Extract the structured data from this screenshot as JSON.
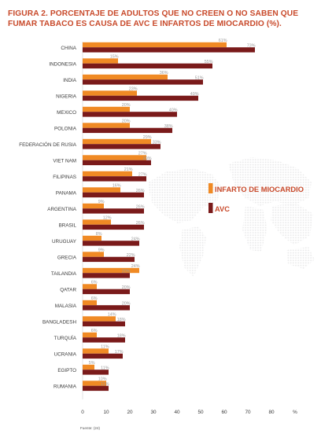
{
  "title": "FIGURA 2. PORCENTAJE DE ADULTOS QUE NO CREEN O NO SABEN QUE FUMAR TABACO ES CAUSA DE AVC E INFARTOS DE MIOCARDIO (%).",
  "source": "Fuente: (24)",
  "chart_data": {
    "type": "bar",
    "orientation": "horizontal",
    "title": "FIGURA 2. PORCENTAJE DE ADULTOS QUE NO CREEN O NO SABEN QUE FUMAR TABACO ES CAUSA DE AVC E INFARTOS DE MIOCARDIO (%).",
    "categories": [
      "CHINA",
      "INDONESIA",
      "INDIA",
      "NIGERIA",
      "MEXICO",
      "POLONIA",
      "FEDERACIÓN DE RUSIA",
      "VIET NAM",
      "FILIPINAS",
      "PANAMA",
      "ARGENTINA",
      "BRASIL",
      "URUGUAY",
      "GRECIA",
      "TAILANDIA",
      "QATAR",
      "MALASIA",
      "BANGLADESH",
      "TURQUÍA",
      "UCRANIA",
      "EGIPTO",
      "RUMANIA"
    ],
    "series": [
      {
        "name": "INFARTO DE MIOCARDIO",
        "color": "#f08a24",
        "values": [
          61,
          15,
          36,
          23,
          20,
          20,
          29,
          27,
          21,
          16,
          9,
          12,
          8,
          9,
          24,
          6,
          6,
          14,
          6,
          11,
          5,
          10
        ]
      },
      {
        "name": "AVC",
        "color": "#7a1a1a",
        "values": [
          73,
          55,
          51,
          49,
          40,
          38,
          33,
          29,
          27,
          26,
          26,
          26,
          24,
          22,
          20,
          20,
          20,
          18,
          18,
          17,
          11,
          11
        ]
      }
    ],
    "data_labels": [
      [
        "61%",
        "73%"
      ],
      [
        "15%",
        "55%"
      ],
      [
        "36%",
        "51%"
      ],
      [
        "23%",
        "49%"
      ],
      [
        "20%",
        "40%"
      ],
      [
        "20%",
        "38%"
      ],
      [
        "29%",
        "33%"
      ],
      [
        "27%",
        "29%"
      ],
      [
        "21%",
        "27%"
      ],
      [
        "16%",
        "26%"
      ],
      [
        "9%",
        "26%"
      ],
      [
        "12%",
        "26%"
      ],
      [
        "8%",
        "24%"
      ],
      [
        "9%",
        "22%"
      ],
      [
        "24%",
        "20%"
      ],
      [
        "6%",
        "20%"
      ],
      [
        "6%",
        "20%"
      ],
      [
        "14%",
        "18%"
      ],
      [
        "6%",
        "18%"
      ],
      [
        "11%",
        "17%"
      ],
      [
        "5%",
        "11%"
      ],
      [
        "10%",
        "11%"
      ]
    ],
    "xlim": [
      0,
      90
    ],
    "xticks": [
      "0",
      "10",
      "20",
      "30",
      "40",
      "50",
      "60",
      "70",
      "80",
      "%"
    ],
    "legend_position": "right",
    "grid": false
  }
}
